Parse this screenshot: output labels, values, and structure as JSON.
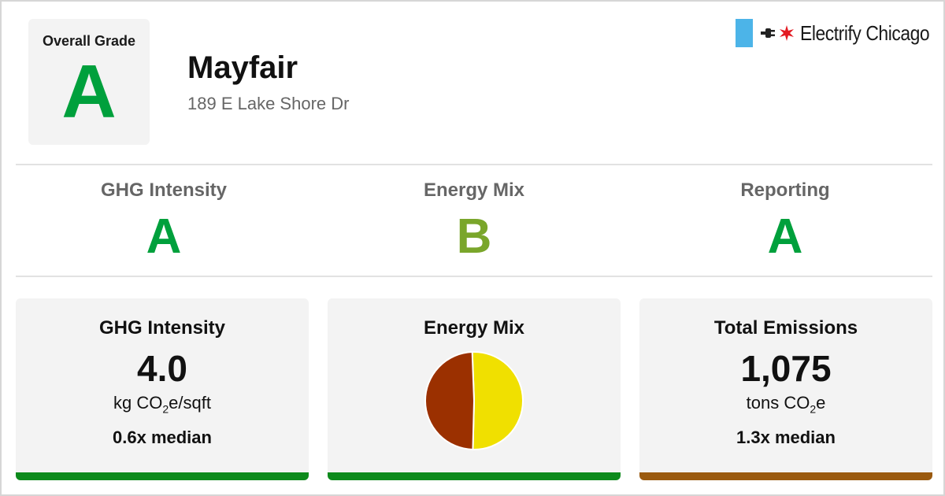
{
  "overall": {
    "label": "Overall Grade",
    "grade": "A",
    "grade_color": "#00a03c"
  },
  "building": {
    "name": "Mayfair",
    "address": "189 E Lake Shore Dr"
  },
  "brand": {
    "text": "Electrify Chicago",
    "flag_color": "#4cb4e8",
    "star_color": "#e31b23",
    "icons": [
      "flag-icon",
      "plug-icon",
      "star-icon"
    ]
  },
  "subgrades": [
    {
      "label": "GHG Intensity",
      "grade": "A",
      "color": "#00a03c"
    },
    {
      "label": "Energy Mix",
      "grade": "B",
      "color": "#7aa62b"
    },
    {
      "label": "Reporting",
      "grade": "A",
      "color": "#00a03c"
    }
  ],
  "cards": {
    "ghg": {
      "title": "GHG Intensity",
      "value": "4.0",
      "unit_prefix": "kg CO",
      "unit_sub": "2",
      "unit_suffix": "e/sqft",
      "median": "0.6x median",
      "bar_color": "#0d8a1c"
    },
    "mix": {
      "title": "Energy Mix",
      "bar_color": "#0d8a1c"
    },
    "total": {
      "title": "Total Emissions",
      "value": "1,075",
      "unit_prefix": "tons CO",
      "unit_sub": "2",
      "unit_suffix": "e",
      "median": "1.3x median",
      "bar_color": "#9a5a0f"
    }
  },
  "chart_data": {
    "type": "pie",
    "slices": [
      {
        "value": 51,
        "color": "#f0e000"
      },
      {
        "value": 49,
        "color": "#9b3000"
      }
    ]
  }
}
